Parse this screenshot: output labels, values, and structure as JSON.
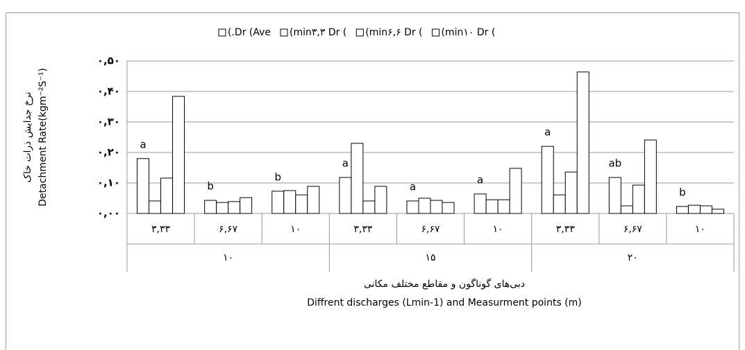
{
  "chart_data": {
    "type": "bar",
    "y_axis_title": "نرخ جدایش ذرات خاک",
    "y_axis_title_en": "Detachment Rate(kgm⁻²S⁻¹)",
    "x_axis_title": "دبی‌های گوناگون و مقاطع مختلف مکانی",
    "x_axis_title_en": "Diffrent discharges (Lmin-1) and Measurment points (m)",
    "categories": [
      "۳,۳۳",
      "۶,۶۷",
      "۱۰",
      "۳,۳۳",
      "۶,۶۷",
      "۱۰",
      "۳,۳۳",
      "۶,۶۷",
      "۱۰"
    ],
    "groups": [
      "۱۰",
      "۱۵",
      "۲۰"
    ],
    "annotations": [
      "a",
      "b",
      "b",
      "a",
      "a",
      "a",
      "a",
      "ab",
      "b"
    ],
    "series": [
      {
        "name": "(.Dr (Ave",
        "color": "#ffffff",
        "values": [
          0.18,
          0.043,
          0.073,
          0.118,
          0.041,
          0.064,
          0.22,
          0.118,
          0.023
        ]
      },
      {
        "name": "(min۳,۳ Dr (",
        "color": "#ffffff",
        "values": [
          0.041,
          0.036,
          0.075,
          0.23,
          0.05,
          0.045,
          0.061,
          0.025,
          0.027
        ]
      },
      {
        "name": "(min۶,۶ Dr (",
        "color": "#ffffff",
        "values": [
          0.116,
          0.039,
          0.061,
          0.041,
          0.043,
          0.045,
          0.136,
          0.093,
          0.025
        ]
      },
      {
        "name": "(min۱۰ Dr (",
        "color": "#ffffff",
        "values": [
          0.384,
          0.052,
          0.089,
          0.089,
          0.036,
          0.148,
          0.464,
          0.241,
          0.014
        ]
      }
    ],
    "ylim": [
      0,
      0.5
    ],
    "yticks": [
      {
        "value": 0,
        "label": "۰,۰۰"
      },
      {
        "value": 0.1,
        "label": "۰,۱۰"
      },
      {
        "value": 0.2,
        "label": "۰,۲۰"
      },
      {
        "value": 0.3,
        "label": "۰,۳۰"
      },
      {
        "value": 0.4,
        "label": "۰,۴۰"
      },
      {
        "value": 0.5,
        "label": "۰,۵۰"
      }
    ],
    "grid": true,
    "legend": "top"
  }
}
